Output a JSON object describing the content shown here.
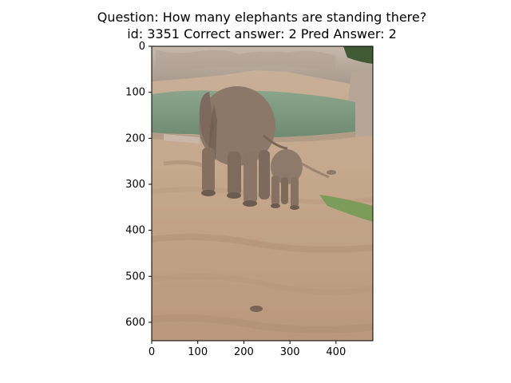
{
  "title": {
    "line1": "Question: How many elephants are standing there?",
    "line2": "id: 3351 Correct answer: 2 Pred Answer: 2"
  },
  "chart_data": {
    "type": "image",
    "x_ticks": [
      0,
      100,
      200,
      300,
      400
    ],
    "y_ticks": [
      0,
      100,
      200,
      300,
      400,
      500,
      600
    ],
    "xlim": [
      0,
      480
    ],
    "ylim": [
      640,
      0
    ],
    "image_content": {
      "subject": "elephant",
      "count": 2
    }
  },
  "colors": {
    "ground": "#c7ab90",
    "ground_dark": "#a98c73",
    "rock": "#b8a79a",
    "water": "#7f9a80",
    "elephant": "#8c7869",
    "elephant_shadow": "#6c5b4f",
    "grass": "#6f9a52",
    "foliage": "#3f5a35"
  }
}
